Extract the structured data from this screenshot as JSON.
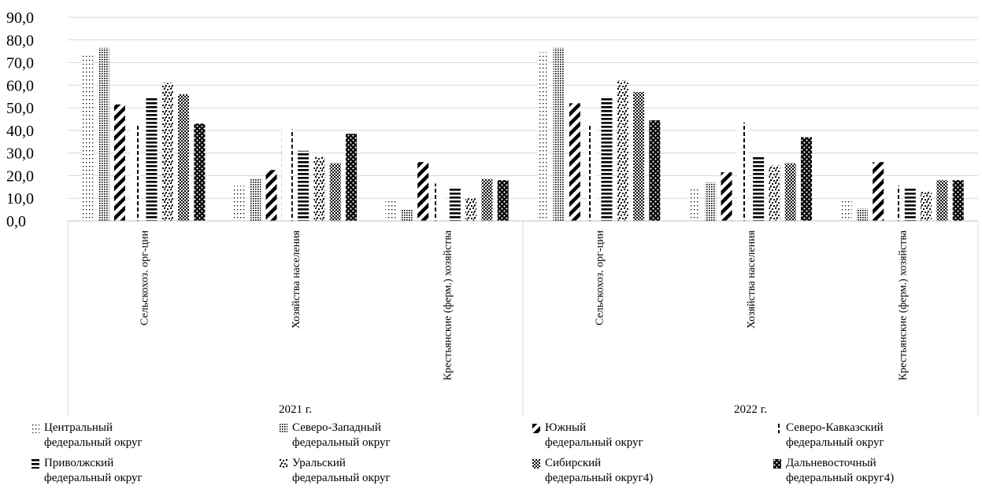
{
  "chart_data": {
    "type": "bar",
    "title": "",
    "xlabel": "",
    "ylabel": "",
    "ylim": [
      0,
      90
    ],
    "y_ticks": [
      "0,0",
      "10,0",
      "20,0",
      "30,0",
      "40,0",
      "50,0",
      "60,0",
      "70,0",
      "80,0",
      "90,0"
    ],
    "grid": true,
    "legend_position": "bottom",
    "groups": [
      {
        "label": "2021 г.",
        "categories": [
          "Сельскохоз. орг-ции",
          "Хозяйства населения",
          "Крестьянские (ферм.) хозяйства"
        ]
      },
      {
        "label": "2022 г.",
        "categories": [
          "Сельскохоз. орг-ции",
          "Хозяйства населения",
          "Крестьянские (ферм.) хозяйства"
        ]
      }
    ],
    "series": [
      {
        "name": "Центральный\nфедеральный округ",
        "pattern": "sparse-dots",
        "values": [
          73.5,
          15.5,
          9.0,
          74.5,
          14.5,
          9.0
        ]
      },
      {
        "name": "Северо-Западный\nфедеральный округ",
        "pattern": "dense-dots",
        "values": [
          76.5,
          18.5,
          5.0,
          76.5,
          17.0,
          5.5
        ]
      },
      {
        "name": "Южный\nфедеральный округ",
        "pattern": "wide-diagonal",
        "values": [
          51.5,
          22.5,
          26.0,
          52.0,
          21.5,
          26.0
        ]
      },
      {
        "name": "Северо-Кавказский\nфедеральный округ",
        "pattern": "dashed-vertical",
        "values": [
          43.0,
          40.5,
          16.5,
          42.0,
          43.5,
          15.5
        ]
      },
      {
        "name": "Приволжский\nфедеральный округ",
        "pattern": "horizontal-stripes",
        "values": [
          54.5,
          31.0,
          15.0,
          55.0,
          28.5,
          15.0
        ]
      },
      {
        "name": "Уральский\nфедеральный округ",
        "pattern": "confetti",
        "values": [
          61.0,
          28.5,
          10.0,
          62.0,
          24.5,
          13.0
        ]
      },
      {
        "name": "Сибирский\nфедеральный округ4)",
        "pattern": "checker",
        "values": [
          56.0,
          25.5,
          18.5,
          57.0,
          25.5,
          18.0
        ]
      },
      {
        "name": "Дальневосточный\nфедеральный округ4)",
        "pattern": "dark-dots",
        "values": [
          43.0,
          38.5,
          18.0,
          44.5,
          37.0,
          18.0
        ]
      }
    ]
  }
}
